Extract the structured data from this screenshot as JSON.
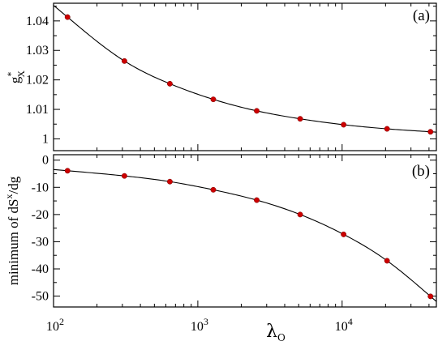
{
  "chart_data": [
    {
      "type": "scatter",
      "panel_label": "(a)",
      "ylabel": {
        "main": "g",
        "sup": "*",
        "sub": "X"
      },
      "xscale": "log",
      "xlim": [
        100,
        45000
      ],
      "ylim": [
        0.996,
        1.046
      ],
      "yticks": [
        1.0,
        1.01,
        1.02,
        1.03,
        1.04
      ],
      "ytick_labels": [
        "1",
        "1.01",
        "1.02",
        "1.03",
        "1.04"
      ],
      "points": {
        "x": [
          125,
          310,
          640,
          1280,
          2560,
          5120,
          10240,
          20480,
          40960
        ],
        "y": [
          1.0413,
          1.0264,
          1.0187,
          1.0134,
          1.0095,
          1.0068,
          1.0048,
          1.0034,
          1.0024
        ]
      },
      "grid": false
    },
    {
      "type": "scatter",
      "panel_label": "(b)",
      "ylabel": {
        "main": "minimum of dS",
        "sup": "x",
        "tail": "/dg"
      },
      "xlabel": {
        "main": "λ",
        "sub": "Q"
      },
      "xscale": "log",
      "xlim": [
        100,
        45000
      ],
      "ylim": [
        -54,
        2
      ],
      "yticks": [
        0,
        -10,
        -20,
        -30,
        -40,
        -50
      ],
      "ytick_labels": [
        "0",
        "-10",
        "-20",
        "-30",
        "-40",
        "-50"
      ],
      "xticks": [
        100,
        1000,
        10000
      ],
      "xtick_labels": [
        {
          "base": "10",
          "exp": "2"
        },
        {
          "base": "10",
          "exp": "3"
        },
        {
          "base": "10",
          "exp": "4"
        }
      ],
      "points": {
        "x": [
          125,
          310,
          640,
          1280,
          2560,
          5120,
          10240,
          20480,
          40960
        ],
        "y": [
          -3.9,
          -5.8,
          -7.9,
          -10.9,
          -14.7,
          -20.0,
          -27.3,
          -37.0,
          -50.1
        ]
      },
      "grid": false
    }
  ]
}
